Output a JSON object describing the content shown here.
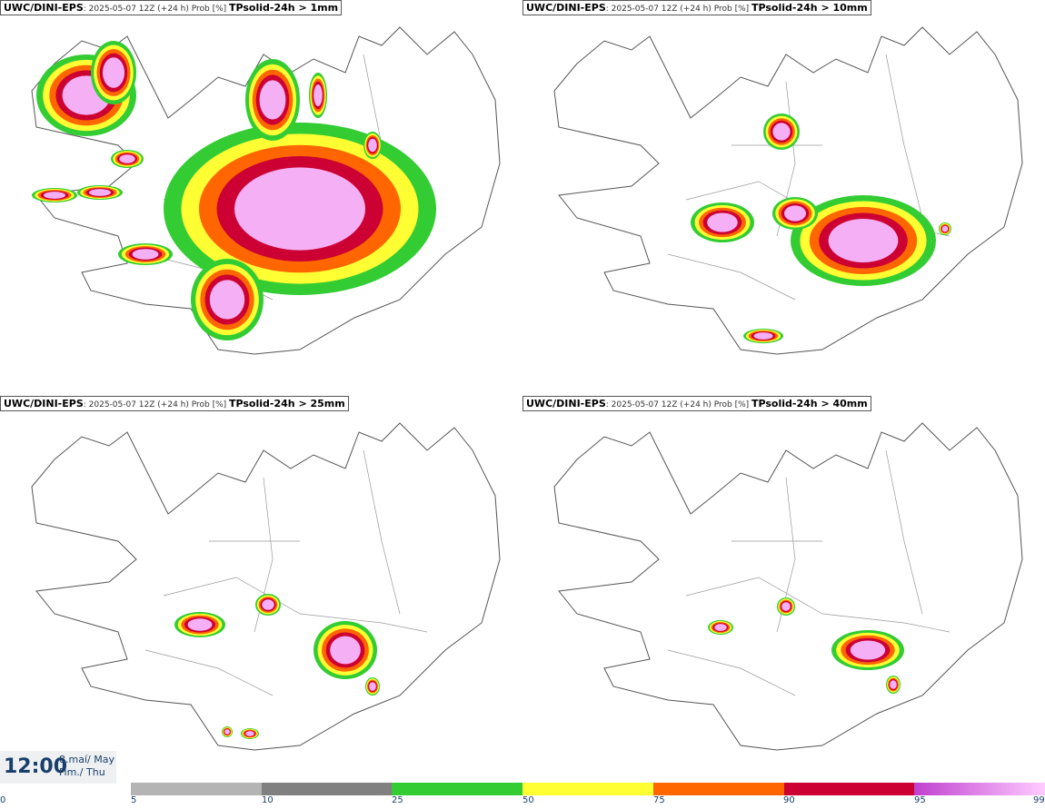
{
  "panels": [
    {
      "model": "UWC/DINI-EPS",
      "run": ": 2025-05-07 12Z (+24 h) Prob [%] ",
      "param": "TPsolid-24h > 1mm"
    },
    {
      "model": "UWC/DINI-EPS",
      "run": ": 2025-05-07 12Z (+24 h) Prob [%] ",
      "param": "TPsolid-24h > 10mm"
    },
    {
      "model": "UWC/DINI-EPS",
      "run": ": 2025-05-07 12Z (+24 h) Prob [%] ",
      "param": "TPsolid-24h > 25mm"
    },
    {
      "model": "UWC/DINI-EPS",
      "run": ": 2025-05-07 12Z (+24 h) Prob [%] ",
      "param": "TPsolid-24h > 40mm"
    }
  ],
  "time": {
    "clock": "12:00",
    "date": "8.maí/ May",
    "day": "Fim./ Thu"
  },
  "legend": {
    "labels": [
      "0",
      "5",
      "10",
      "25",
      "50",
      "75",
      "90",
      "95",
      "99"
    ],
    "colors": [
      "#b4b4b4",
      "#808080",
      "#33cc33",
      "#ffff33",
      "#ff6600",
      "#cc0033",
      "#c040d0",
      "#ffccff"
    ]
  }
}
